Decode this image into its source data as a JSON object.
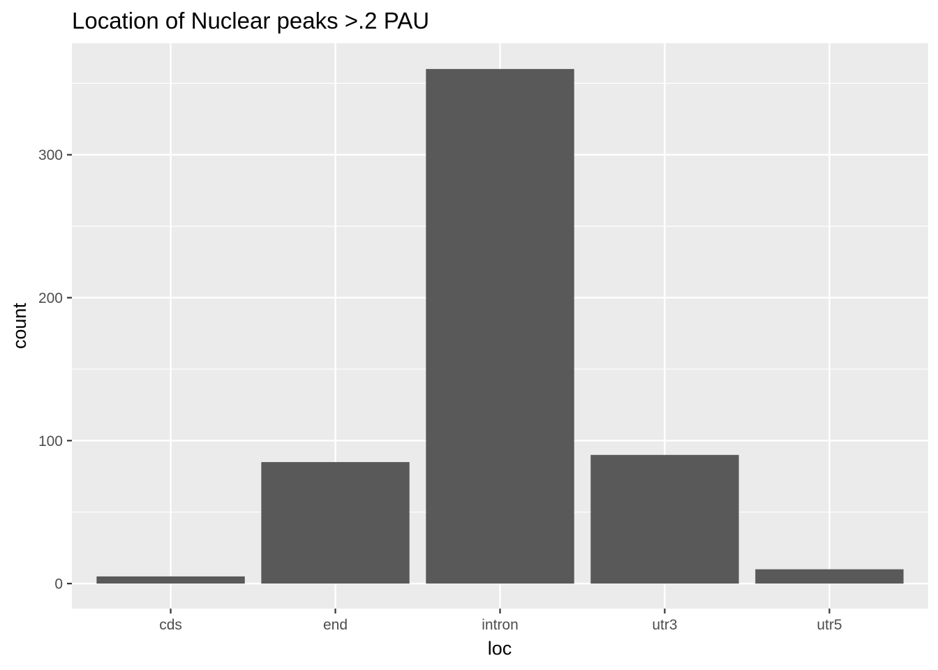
{
  "chart_data": {
    "type": "bar",
    "title": "Location of Nuclear peaks >.2 PAU",
    "xlabel": "loc",
    "ylabel": "count",
    "categories": [
      "cds",
      "end",
      "intron",
      "utr3",
      "utr5"
    ],
    "values": [
      5,
      85,
      360,
      90,
      10
    ],
    "ylim": [
      -17.5,
      378
    ],
    "yticks": [
      0,
      100,
      200,
      300
    ],
    "grid": true,
    "legend": "none",
    "colors": {
      "bar": "#595959",
      "panel": "#ebebeb",
      "grid": "#ffffff",
      "tick": "#333333"
    }
  }
}
